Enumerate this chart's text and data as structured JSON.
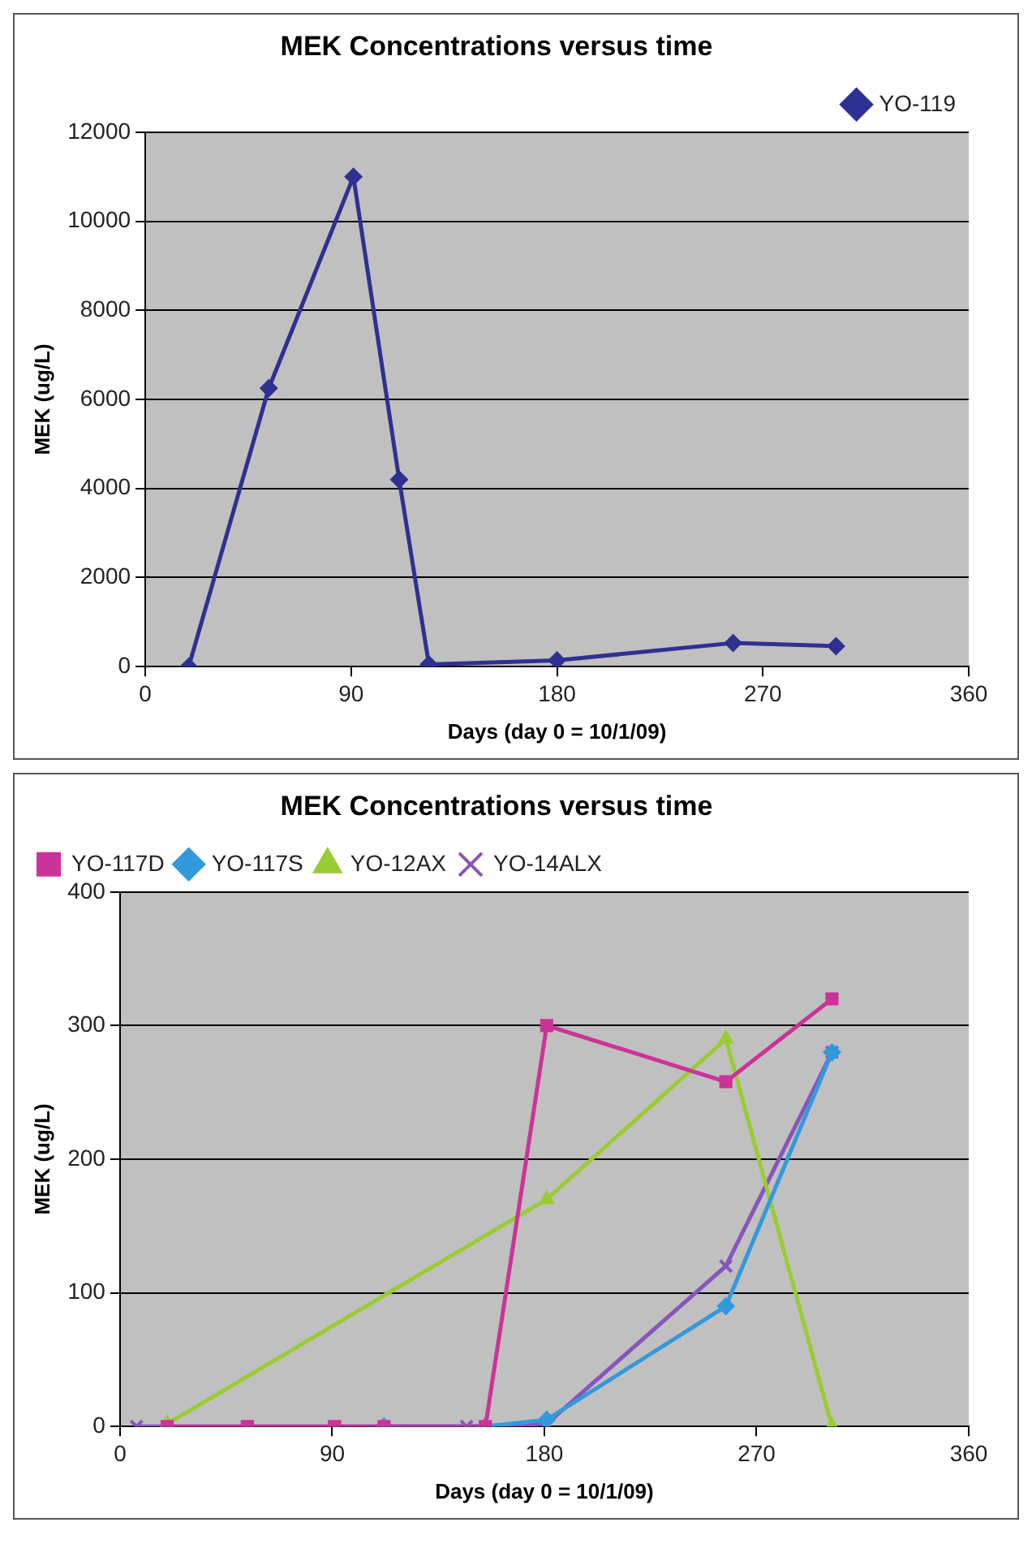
{
  "chart_data": [
    {
      "type": "line",
      "title": "MEK Concentrations versus time",
      "xlabel": "Days (day 0 = 10/1/09)",
      "ylabel": "MEK (ug/L)",
      "xlim": [
        0,
        360
      ],
      "xticks": [
        0,
        90,
        180,
        270,
        360
      ],
      "ylim": [
        0,
        12000
      ],
      "yticks": [
        0,
        2000,
        4000,
        6000,
        8000,
        10000,
        12000
      ],
      "grid": "y",
      "legend": "top right",
      "series": [
        {
          "name": "YO-119",
          "color": "#2e3192",
          "marker": "diamond",
          "x": [
            19,
            54,
            91,
            111,
            124,
            180,
            257,
            302
          ],
          "values": [
            0,
            6250,
            11000,
            4200,
            50,
            140,
            530,
            460
          ]
        }
      ]
    },
    {
      "type": "line",
      "title": "MEK Concentrations versus time",
      "xlabel": "Days (day 0 = 10/1/09)",
      "ylabel": "MEK (ug/L)",
      "xlim": [
        0,
        360
      ],
      "xticks": [
        0,
        90,
        180,
        270,
        360
      ],
      "ylim": [
        0,
        400
      ],
      "yticks": [
        0,
        100,
        200,
        300,
        400
      ],
      "grid": "y",
      "legend": "top left",
      "series": [
        {
          "name": "YO-117D",
          "color": "#cc3399",
          "marker": "square",
          "x": [
            20,
            54,
            91,
            112,
            155,
            181,
            257,
            302
          ],
          "values": [
            0,
            0,
            0,
            0,
            0,
            300,
            258,
            320
          ]
        },
        {
          "name": "YO-117S",
          "color": "#3399dd",
          "marker": "diamond",
          "x": [
            112,
            155,
            181,
            257,
            302
          ],
          "values": [
            0,
            0,
            5,
            90,
            280
          ]
        },
        {
          "name": "YO-12AX",
          "color": "#99cc33",
          "marker": "triangle",
          "x": [
            20,
            181,
            257,
            302
          ],
          "values": [
            2,
            170,
            290,
            0
          ]
        },
        {
          "name": "YO-14ALX",
          "color": "#8855bb",
          "marker": "cross",
          "x": [
            7,
            54,
            91,
            112,
            147,
            181,
            257,
            302
          ],
          "values": [
            0,
            0,
            0,
            0,
            0,
            2,
            120,
            280
          ]
        }
      ]
    }
  ]
}
